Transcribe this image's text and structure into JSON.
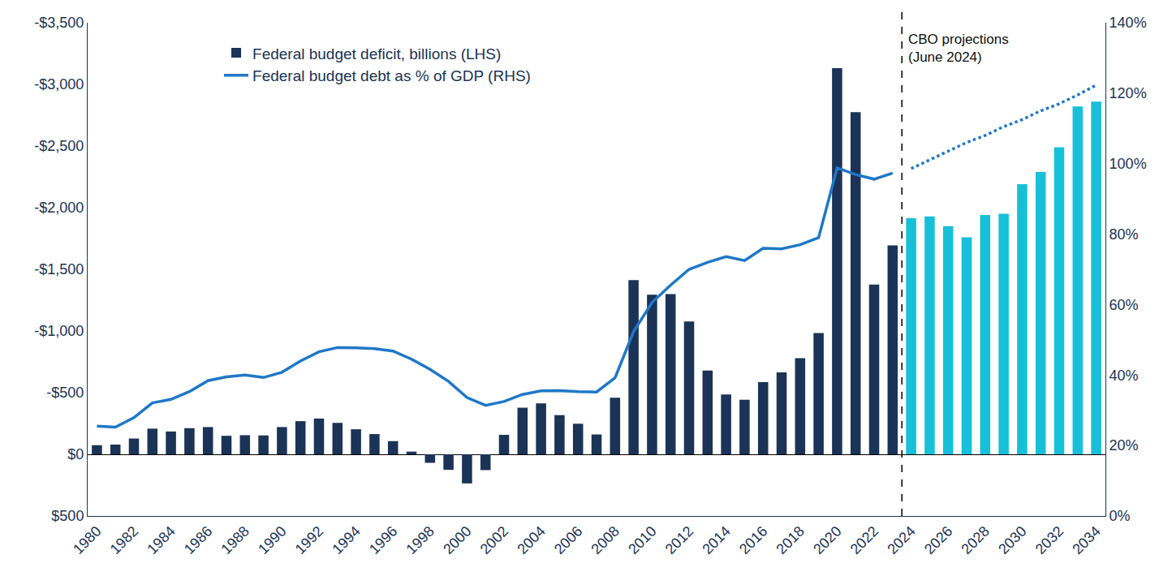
{
  "chart_data": {
    "type": "bar",
    "x": [
      1980,
      1981,
      1982,
      1983,
      1984,
      1985,
      1986,
      1987,
      1988,
      1989,
      1990,
      1991,
      1992,
      1993,
      1994,
      1995,
      1996,
      1997,
      1998,
      1999,
      2000,
      2001,
      2002,
      2003,
      2004,
      2005,
      2006,
      2007,
      2008,
      2009,
      2010,
      2011,
      2012,
      2013,
      2014,
      2015,
      2016,
      2017,
      2018,
      2019,
      2020,
      2021,
      2022,
      2023,
      2024,
      2025,
      2026,
      2027,
      2028,
      2029,
      2030,
      2031,
      2032,
      2033,
      2034
    ],
    "xlim": [
      1979.5,
      2034.5
    ],
    "xticks": [
      1980,
      1982,
      1984,
      1986,
      1988,
      1990,
      1992,
      1994,
      1996,
      1998,
      2000,
      2002,
      2004,
      2006,
      2008,
      2010,
      2012,
      2014,
      2016,
      2018,
      2020,
      2022,
      2024,
      2026,
      2028,
      2030,
      2032,
      2034
    ],
    "ylim": [
      500,
      -3500
    ],
    "yticks": [
      {
        "value": 500,
        "label": "$500"
      },
      {
        "value": 0,
        "label": "$0"
      },
      {
        "value": -500,
        "label": "-$500"
      },
      {
        "value": -1000,
        "label": "-$1,000"
      },
      {
        "value": -1500,
        "label": "-$1,500"
      },
      {
        "value": -2000,
        "label": "-$2,000"
      },
      {
        "value": -2500,
        "label": "-$2,500"
      },
      {
        "value": -3000,
        "label": "-$3,000"
      },
      {
        "value": -3500,
        "label": "-$3,500"
      }
    ],
    "y2lim": [
      0,
      140
    ],
    "y2ticks": [
      {
        "value": 0,
        "label": "0%"
      },
      {
        "value": 20,
        "label": "20%"
      },
      {
        "value": 40,
        "label": "40%"
      },
      {
        "value": 60,
        "label": "60%"
      },
      {
        "value": 80,
        "label": "80%"
      },
      {
        "value": 100,
        "label": "100%"
      },
      {
        "value": 120,
        "label": "120%"
      },
      {
        "value": 140,
        "label": "140%"
      }
    ],
    "grid": false,
    "legend": "upper left",
    "annotations": [
      {
        "text": "CBO projections\n(June 2024)",
        "x": 2023.5
      }
    ],
    "series": [
      {
        "name": "Federal budget deficit, billions (LHS)",
        "type": "bar",
        "colors": [
          "#1b3356",
          "#1b3356",
          "#1b3356",
          "#1b3356",
          "#1b3356",
          "#1b3356",
          "#1b3356",
          "#1b3356",
          "#1b3356",
          "#1b3356",
          "#1b3356",
          "#1b3356",
          "#1b3356",
          "#1b3356",
          "#1b3356",
          "#1b3356",
          "#1b3356",
          "#1b3356",
          "#1b3356",
          "#1b3356",
          "#1b3356",
          "#1b3356",
          "#1b3356",
          "#1b3356",
          "#1b3356",
          "#1b3356",
          "#1b3356",
          "#1b3356",
          "#1b3356",
          "#1b3356",
          "#1b3356",
          "#1b3356",
          "#1b3356",
          "#1b3356",
          "#1b3356",
          "#1b3356",
          "#1b3356",
          "#1b3356",
          "#1b3356",
          "#1b3356",
          "#1b3356",
          "#1b3356",
          "#1b3356",
          "#1b3356",
          "#16c0d8",
          "#16c0d8",
          "#16c0d8",
          "#16c0d8",
          "#16c0d8",
          "#16c0d8",
          "#16c0d8",
          "#16c0d8",
          "#16c0d8",
          "#16c0d8",
          "#16c0d8"
        ],
        "values": [
          -74,
          -79,
          -128,
          -208,
          -185,
          -212,
          -221,
          -150,
          -155,
          -153,
          -221,
          -269,
          -290,
          -255,
          -203,
          -164,
          -107,
          -22,
          69,
          126,
          236,
          128,
          -158,
          -378,
          -413,
          -318,
          -248,
          -161,
          -459,
          -1413,
          -1294,
          -1300,
          -1077,
          -680,
          -485,
          -442,
          -585,
          -665,
          -779,
          -984,
          -3132,
          -2775,
          -1376,
          -1694,
          -1915,
          -1930,
          -1850,
          -1760,
          -1940,
          -1950,
          -2190,
          -2290,
          -2490,
          -2820,
          -2860
        ]
      },
      {
        "name": "Federal budget debt as % of GDP (RHS)",
        "type": "line",
        "axis": "y2",
        "color": "#1f78c8",
        "line_style": "solid",
        "values": [
          25.5,
          25.2,
          27.9,
          32.1,
          33.1,
          35.3,
          38.4,
          39.5,
          40.0,
          39.3,
          40.8,
          44.0,
          46.6,
          47.8,
          47.7,
          47.5,
          46.8,
          44.5,
          41.6,
          38.2,
          33.6,
          31.4,
          32.5,
          34.5,
          35.5,
          35.6,
          35.3,
          35.2,
          39.2,
          52.3,
          60.6,
          65.5,
          70.0,
          72.0,
          73.6,
          72.5,
          76.0,
          75.8,
          77.0,
          79.0,
          98.8,
          96.9,
          95.6,
          97.3,
          null,
          null,
          null,
          null,
          null,
          null,
          null,
          null,
          null,
          null,
          null
        ]
      },
      {
        "type": "line",
        "axis": "y2",
        "color": "#1f78c8",
        "line_style": "dotted",
        "values": [
          null,
          null,
          null,
          null,
          null,
          null,
          null,
          null,
          null,
          null,
          null,
          null,
          null,
          null,
          null,
          null,
          null,
          null,
          null,
          null,
          null,
          null,
          null,
          null,
          null,
          null,
          null,
          null,
          null,
          null,
          null,
          null,
          null,
          null,
          null,
          null,
          null,
          null,
          null,
          null,
          null,
          null,
          null,
          null,
          98.6,
          101,
          103.5,
          106,
          108,
          110.5,
          112.5,
          115,
          117,
          119.5,
          122.3
        ]
      }
    ]
  }
}
